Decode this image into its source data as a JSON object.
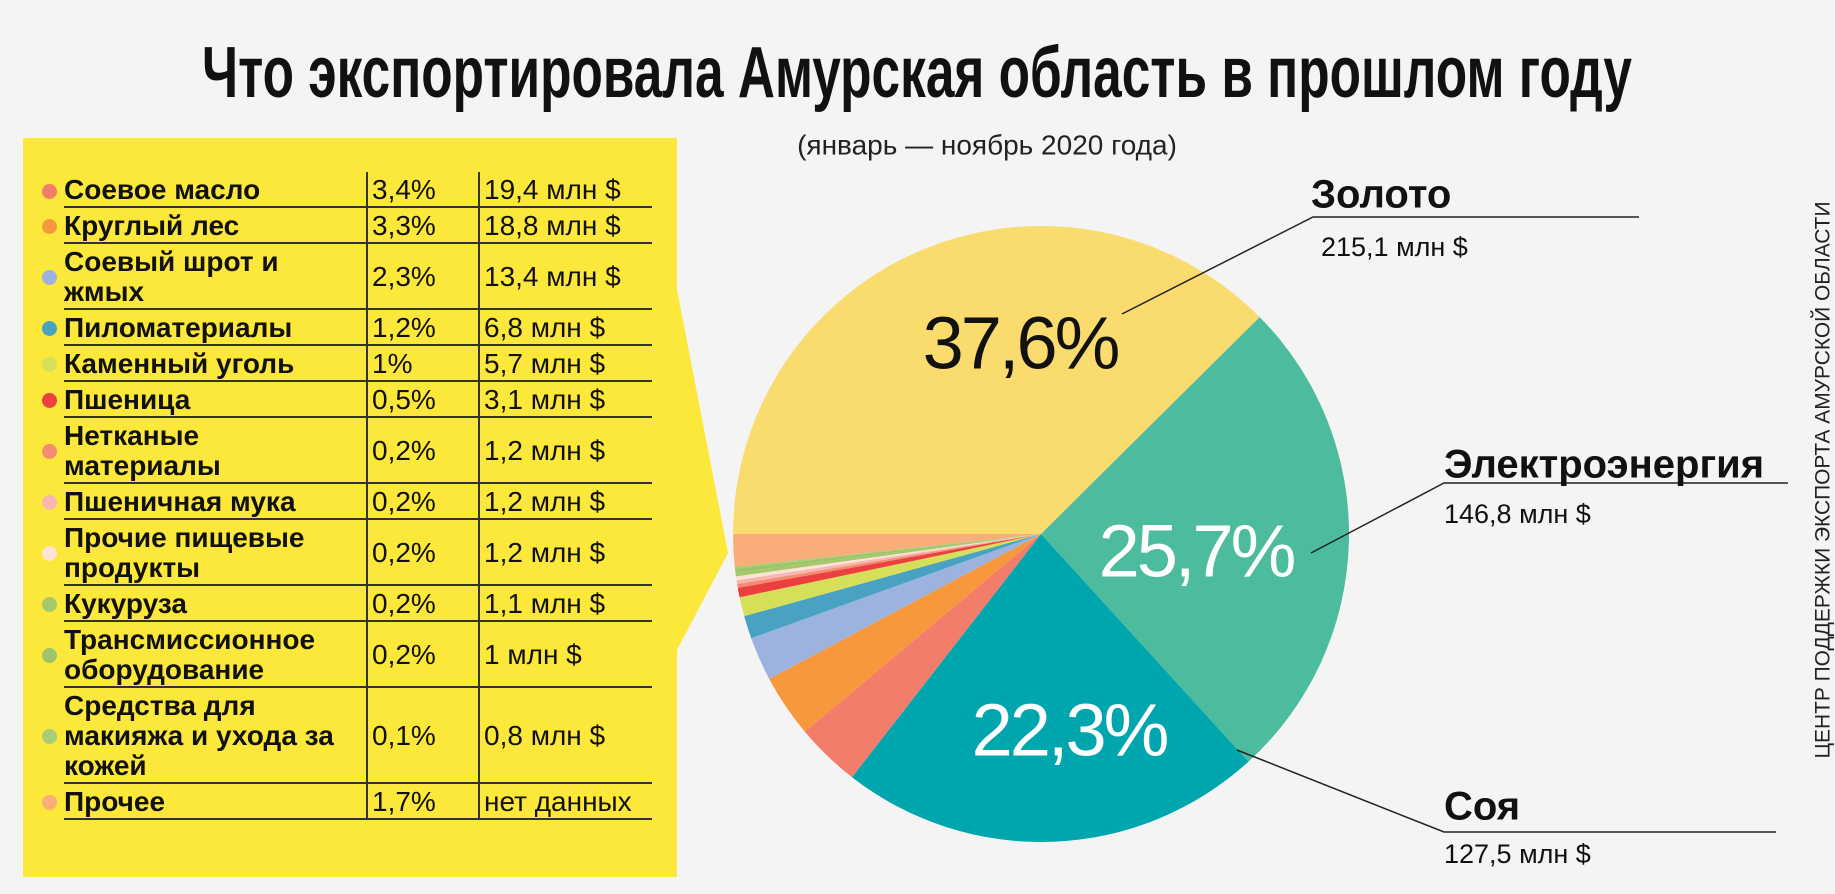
{
  "chart_data": {
    "type": "pie",
    "title": "Что экспортировала Амурская область в прошлом году",
    "subtitle": "(январь — ноябрь 2020 года)",
    "source": "ЦЕНТР ПОДДЕРЖКИ ЭКСПОРТА АМУРСКОЙ ОБЛАСТИ",
    "categories": [
      "Золото",
      "Электроэнергия",
      "Соя",
      "Соевое масло",
      "Круглый лес",
      "Соевый шрот и жмых",
      "Пиломатериалы",
      "Каменный уголь",
      "Пшеница",
      "Нетканые материалы",
      "Пшеничная мука",
      "Прочие пищевые продукты",
      "Кукуруза",
      "Трансмиссионное оборудование",
      "Средства для макияжа и ухода за кожей",
      "Прочее"
    ],
    "values": [
      37.6,
      25.7,
      22.3,
      3.4,
      3.3,
      2.3,
      1.2,
      1,
      0.5,
      0.2,
      0.2,
      0.2,
      0.2,
      0.2,
      0.1,
      1.7
    ],
    "value_labels": [
      "37,6%",
      "25,7%",
      "22,3%",
      "3,4%",
      "3,3%",
      "2,3%",
      "1,2%",
      "1%",
      "0,5%",
      "0,2%",
      "0,2%",
      "0,2%",
      "0,2%",
      "0,2%",
      "0,1%",
      "1,7%"
    ],
    "amount_labels": [
      "215,1 млн $",
      "146,8 млн $",
      "127,5 млн $",
      "19,4 млн $",
      "18,8 млн $",
      "13,4 млн $",
      "6,8 млн $",
      "5,7 млн $",
      "3,1 млн $",
      "1,2 млн $",
      "1,2 млн $",
      "1,2 млн $",
      "1,1 млн $",
      "1 млн $",
      "0,8 млн $",
      "нет данных"
    ],
    "colors": [
      "#fadb6e",
      "#4dbb9d",
      "#00a6ae",
      "#f37d6b",
      "#f8983d",
      "#9cb3df",
      "#4aa2c2",
      "#d6df5a",
      "#ec3f3f",
      "#f48b72",
      "#f7b7ae",
      "#fde2d6",
      "#a5c96a",
      "#9ec46b",
      "#a7cd79",
      "#f9ad79"
    ]
  }
}
